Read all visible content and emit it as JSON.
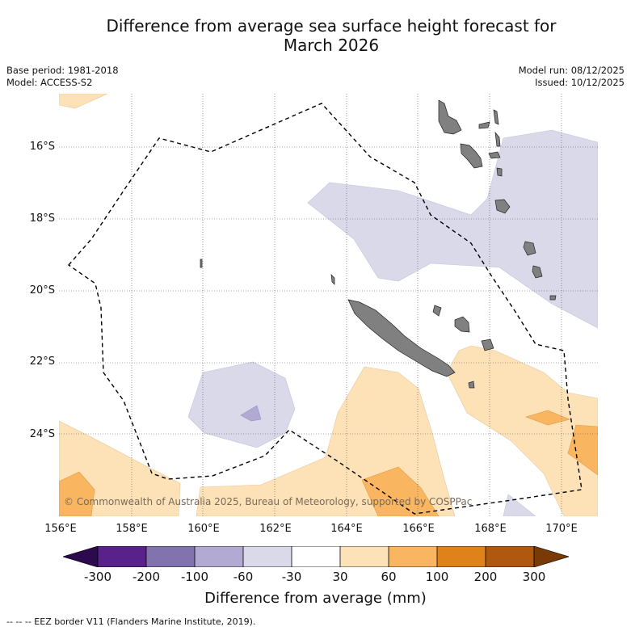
{
  "title_line1": "Difference from average sea surface height forecast for",
  "title_line2": "March 2026",
  "meta_left": {
    "base_period": "Base period: 1981-2018",
    "model": "Model: ACCESS-S2"
  },
  "meta_right": {
    "model_run": "Model run: 08/12/2025",
    "issued": "Issued: 10/12/2025"
  },
  "lat_labels": [
    "16°S",
    "18°S",
    "20°S",
    "22°S",
    "24°S"
  ],
  "lon_labels": [
    "156°E",
    "158°E",
    "160°E",
    "162°E",
    "164°E",
    "166°E",
    "168°E",
    "170°E"
  ],
  "credit": "© Commonwealth of Australia 2025, Bureau of Meteorology, supported by COSPPac",
  "colorbar": {
    "title": "Difference from average (mm)",
    "tick_labels": [
      "-300",
      "-200",
      "-100",
      "-60",
      "-30",
      "30",
      "60",
      "100",
      "200",
      "300"
    ],
    "colors": [
      "#2d0a4e",
      "#58228a",
      "#8273ae",
      "#b2aad2",
      "#d9d9ea",
      "#ffffff",
      "#fde2b8",
      "#f9b560",
      "#e0821a",
      "#b0580e",
      "#7a3a06"
    ]
  },
  "legend_text": "--  --  -- EEZ border V11 (Flanders Marine Institute, 2019).",
  "colors": {
    "land": "#808080",
    "neg_light": "#d9d9ea",
    "neg_mid": "#b2aad2",
    "pos_light": "#fde2b8",
    "pos_mid": "#f9b560"
  }
}
